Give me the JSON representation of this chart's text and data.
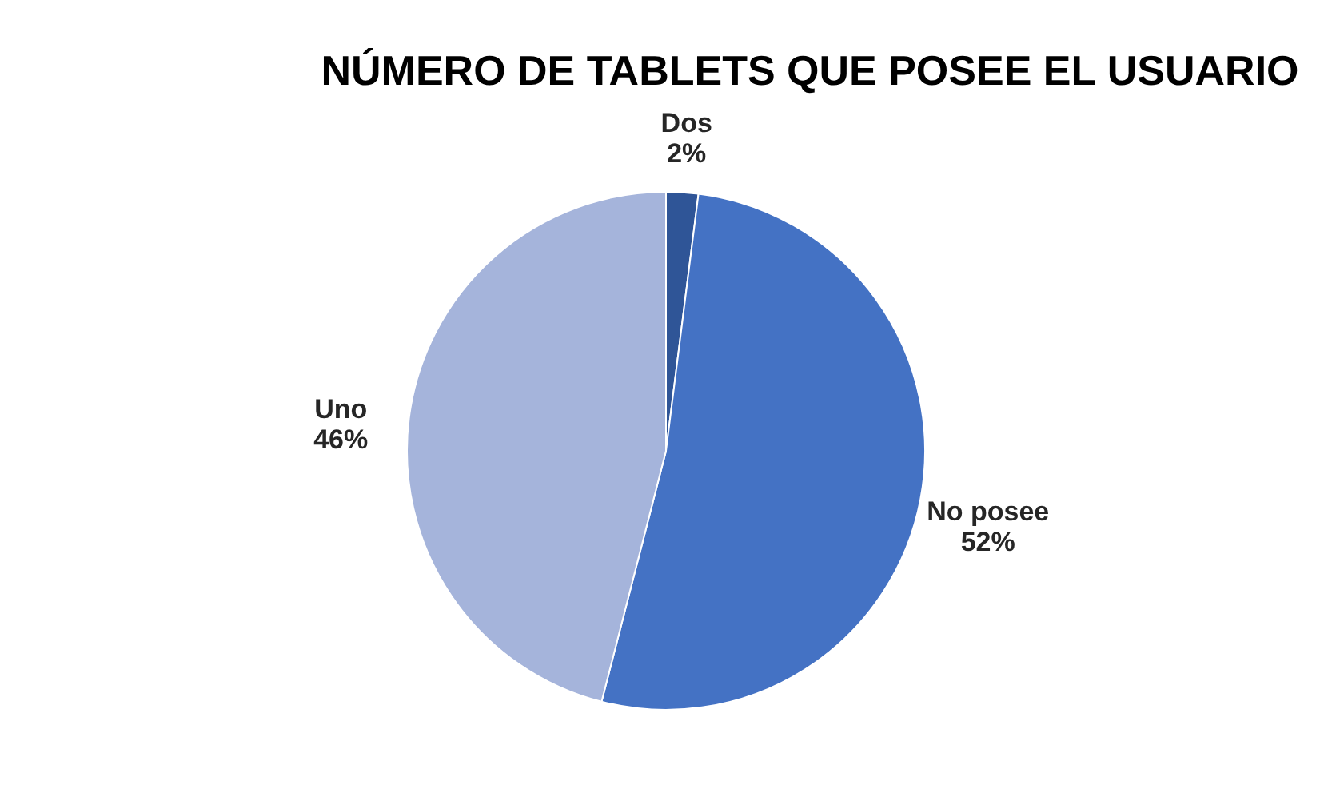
{
  "chart_data": {
    "type": "pie",
    "title": "NÚMERO DE TABLETS QUE POSEE EL USUARIO",
    "categories": [
      "Dos",
      "No posee",
      "Uno"
    ],
    "values": [
      2,
      52,
      46
    ],
    "colors": [
      "#2f5597",
      "#4472c4",
      "#a5b4db"
    ],
    "value_labels": [
      "2%",
      "52%",
      "46%"
    ]
  }
}
